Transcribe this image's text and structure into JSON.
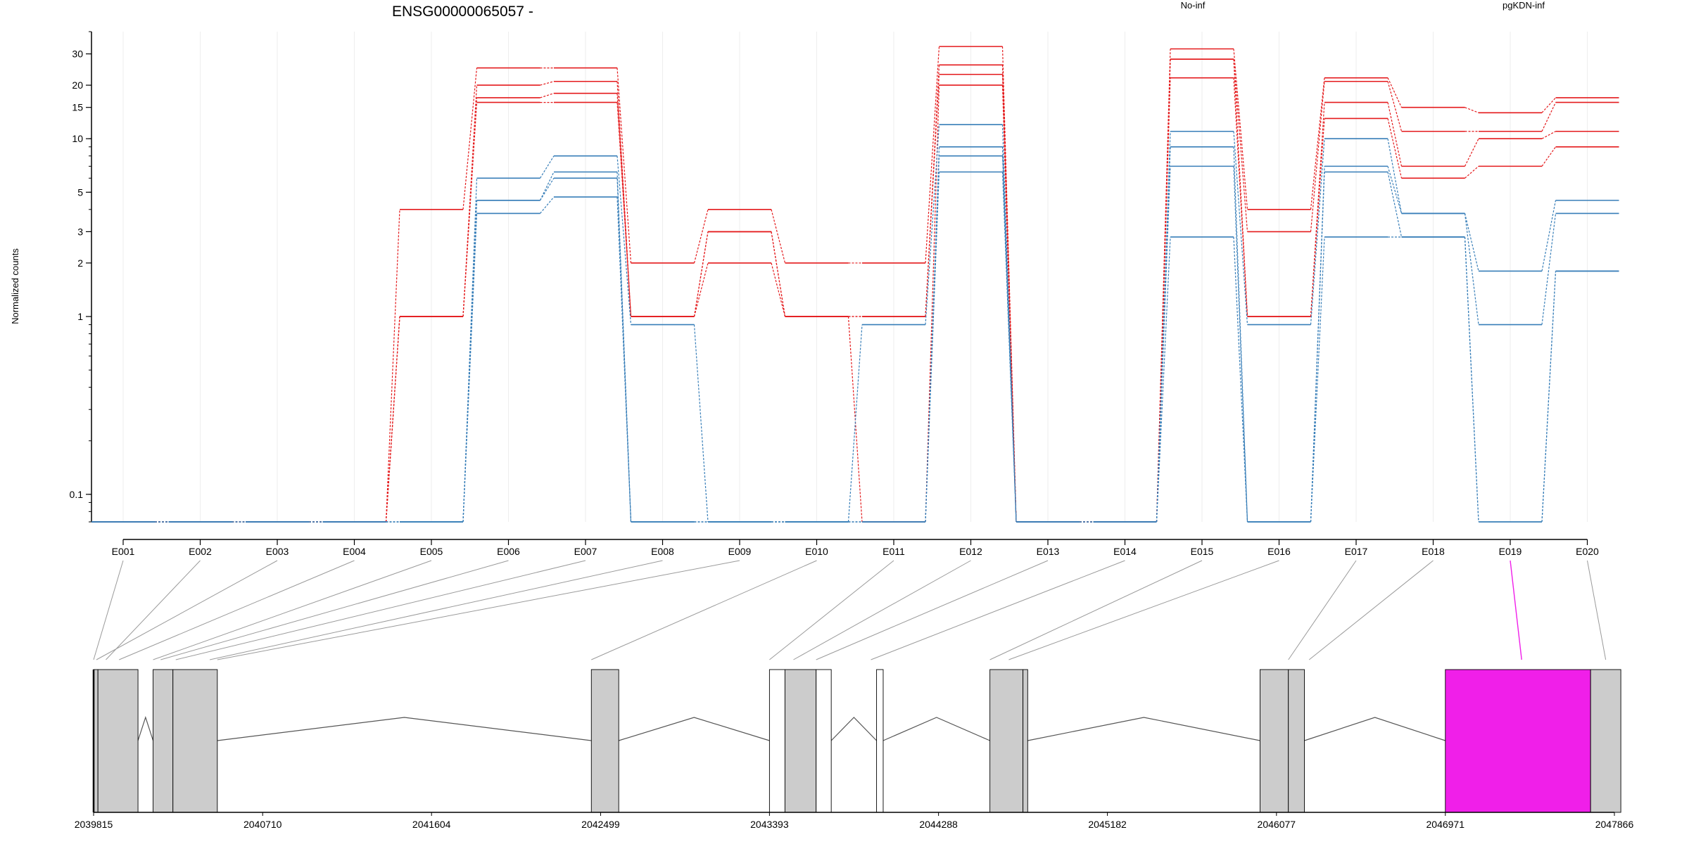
{
  "chart_data": {
    "type": "line",
    "title": "ENSG00000065057 -",
    "xlabel": "",
    "ylabel": "Normalized counts",
    "y_scale": "log",
    "y_ticks": [
      0.1,
      1,
      2,
      3,
      5,
      10,
      15,
      20,
      30
    ],
    "y_tick_labels": [
      "0.1",
      "1",
      "2",
      "3",
      "5",
      "10",
      "15",
      "20",
      "30"
    ],
    "ylim": [
      0.07,
      40
    ],
    "categories": [
      "E001",
      "E002",
      "E003",
      "E004",
      "E005",
      "E006",
      "E007",
      "E008",
      "E009",
      "E010",
      "E011",
      "E012",
      "E013",
      "E014",
      "E015",
      "E016",
      "E017",
      "E018",
      "E019",
      "E020"
    ],
    "legend": [
      {
        "name": "No-inf",
        "color": "#e41a1c"
      },
      {
        "name": "pgKDN-inf",
        "color": "#377eb8"
      }
    ],
    "series": [
      {
        "group": "No-inf",
        "color": "#e41a1c",
        "values": [
          0.07,
          0.07,
          0.07,
          0.07,
          4,
          25,
          25,
          2,
          4,
          2,
          2,
          33,
          0.07,
          0.07,
          32,
          4,
          22,
          15,
          14,
          17
        ]
      },
      {
        "group": "No-inf",
        "color": "#e41a1c",
        "values": [
          0.07,
          0.07,
          0.07,
          0.07,
          1,
          20,
          21,
          1,
          3,
          1,
          1,
          26,
          0.07,
          0.07,
          28,
          3,
          21,
          11,
          11,
          16
        ]
      },
      {
        "group": "No-inf",
        "color": "#e41a1c",
        "values": [
          0.07,
          0.07,
          0.07,
          0.07,
          1,
          17,
          18,
          1,
          3,
          1,
          1,
          23,
          0.07,
          0.07,
          28,
          1,
          16,
          7,
          10,
          11
        ]
      },
      {
        "group": "No-inf",
        "color": "#e41a1c",
        "values": [
          0.07,
          0.07,
          0.07,
          0.07,
          1,
          16,
          16,
          1,
          2,
          1,
          0.07,
          20,
          0.07,
          0.07,
          22,
          1,
          13,
          6,
          7,
          9
        ]
      },
      {
        "group": "pgKDN-inf",
        "color": "#377eb8",
        "values": [
          0.07,
          0.07,
          0.07,
          0.07,
          0.07,
          6,
          8,
          0.9,
          0.07,
          0.07,
          0.9,
          12,
          0.07,
          0.07,
          11,
          0.9,
          10,
          3.8,
          1.8,
          4.5
        ]
      },
      {
        "group": "pgKDN-inf",
        "color": "#377eb8",
        "values": [
          0.07,
          0.07,
          0.07,
          0.07,
          0.07,
          4.5,
          6.5,
          0.07,
          0.07,
          0.07,
          0.07,
          9,
          0.07,
          0.07,
          9,
          0.07,
          7,
          3.8,
          0.9,
          3.8
        ]
      },
      {
        "group": "pgKDN-inf",
        "color": "#377eb8",
        "values": [
          0.07,
          0.07,
          0.07,
          0.07,
          0.07,
          4.5,
          6,
          0.07,
          0.07,
          0.07,
          0.07,
          8,
          0.07,
          0.07,
          7,
          0.07,
          6.5,
          2.8,
          0.07,
          1.8
        ]
      },
      {
        "group": "pgKDN-inf",
        "color": "#377eb8",
        "values": [
          0.07,
          0.07,
          0.07,
          0.07,
          0.07,
          3.8,
          4.7,
          0.07,
          0.07,
          0.07,
          0.07,
          6.5,
          0.07,
          0.07,
          2.8,
          0.07,
          2.8,
          2.8,
          0.07,
          1.8
        ]
      }
    ],
    "genomic_axis": {
      "tick_labels": [
        "2039815",
        "2040710",
        "2041604",
        "2042499",
        "2043393",
        "2044288",
        "2045182",
        "2046077",
        "2046971",
        "2047866"
      ],
      "tick_values": [
        2039815,
        2040710,
        2041604,
        2042499,
        2043393,
        2044288,
        2045182,
        2046077,
        2046971,
        2047866
      ]
    },
    "exon_model": {
      "highlight_exon": "E019",
      "highlight_color": "#f01fe9",
      "exon_color": "#cccccc",
      "blocks": [
        {
          "start": 2039815,
          "end": 2039838,
          "fill": "#cccccc"
        },
        {
          "start": 2039838,
          "end": 2040050,
          "fill": "#cccccc"
        },
        {
          "start": 2040130,
          "end": 2040235,
          "fill": "#cccccc"
        },
        {
          "start": 2040235,
          "end": 2040470,
          "fill": "#cccccc"
        },
        {
          "start": 2042450,
          "end": 2042595,
          "fill": "#cccccc"
        },
        {
          "start": 2043393,
          "end": 2043475,
          "fill": "#ffffff"
        },
        {
          "start": 2043475,
          "end": 2043640,
          "fill": "#cccccc"
        },
        {
          "start": 2043640,
          "end": 2043720,
          "fill": "#ffffff"
        },
        {
          "start": 2043960,
          "end": 2043995,
          "fill": "#ffffff"
        },
        {
          "start": 2044560,
          "end": 2044735,
          "fill": "#cccccc"
        },
        {
          "start": 2044735,
          "end": 2044760,
          "fill": "#cccccc"
        },
        {
          "start": 2045990,
          "end": 2046140,
          "fill": "#cccccc"
        },
        {
          "start": 2046140,
          "end": 2046225,
          "fill": "#cccccc"
        },
        {
          "start": 2046971,
          "end": 2047740,
          "fill": "#f01fe9"
        },
        {
          "start": 2047740,
          "end": 2047900,
          "fill": "#cccccc"
        }
      ],
      "introns": [
        [
          2040050,
          2040130
        ],
        [
          2040470,
          2042450
        ],
        [
          2042595,
          2043393
        ],
        [
          2043720,
          2043960
        ],
        [
          2043995,
          2044560
        ],
        [
          2044760,
          2045990
        ],
        [
          2046225,
          2046971
        ]
      ],
      "exon_map_positions": [
        2039815,
        2039880,
        2039830,
        2039950,
        2040130,
        2040170,
        2040250,
        2040430,
        2040470,
        2042450,
        2043393,
        2043520,
        2043640,
        2043930,
        2044560,
        2044660,
        2046140,
        2046250,
        2047375,
        2047820
      ]
    }
  }
}
